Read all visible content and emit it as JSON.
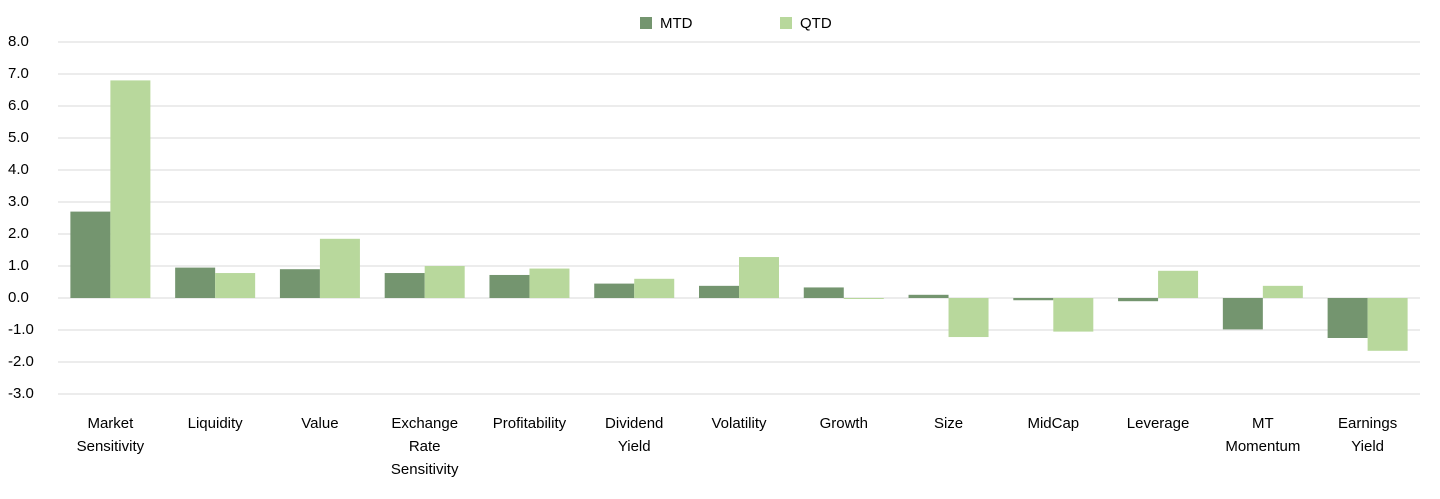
{
  "chart_data": {
    "type": "bar",
    "categories": [
      "Market Sensitivity",
      "Liquidity",
      "Value",
      "Exchange Rate Sensitivity",
      "Profitability",
      "Dividend Yield",
      "Volatility",
      "Growth",
      "Size",
      "MidCap",
      "Leverage",
      "MT Momentum",
      "Earnings Yield"
    ],
    "series": [
      {
        "name": "MTD",
        "color": "#74956f",
        "values": [
          2.7,
          0.95,
          0.9,
          0.78,
          0.72,
          0.45,
          0.38,
          0.33,
          0.1,
          -0.07,
          -0.1,
          -0.98,
          -1.25
        ]
      },
      {
        "name": "QTD",
        "color": "#b8d89c",
        "values": [
          6.8,
          0.78,
          1.85,
          1.0,
          0.92,
          0.6,
          1.28,
          -0.03,
          -1.22,
          -1.05,
          0.85,
          0.38,
          -1.65
        ]
      }
    ],
    "ylim": [
      -3,
      8
    ],
    "yticks": [
      {
        "value": -3,
        "label": "-3.0"
      },
      {
        "value": -2,
        "label": "-2.0"
      },
      {
        "value": -1,
        "label": "-1.0"
      },
      {
        "value": 0,
        "label": "0.0"
      },
      {
        "value": 1,
        "label": "1.0"
      },
      {
        "value": 2,
        "label": "2.0"
      },
      {
        "value": 3,
        "label": "3.0"
      },
      {
        "value": 4,
        "label": "4.0"
      },
      {
        "value": 5,
        "label": "5.0"
      },
      {
        "value": 6,
        "label": "6.0"
      },
      {
        "value": 7,
        "label": "7.0"
      },
      {
        "value": 8,
        "label": "8.0"
      }
    ],
    "grid": true,
    "legend": "top"
  }
}
